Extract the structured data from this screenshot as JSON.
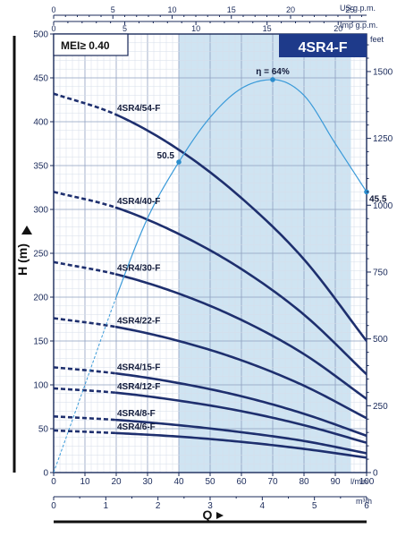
{
  "chart_data": {
    "type": "line",
    "model": "4SR4-F",
    "mei_label": "MEI≥ 0.40",
    "y_axis_label": "H (m)",
    "x_axis_label": "Q",
    "ylim": [
      0,
      500
    ],
    "xlim_lmin": [
      0,
      100
    ],
    "y_ticks_m": [
      0,
      50,
      100,
      150,
      200,
      250,
      300,
      350,
      400,
      450,
      500
    ],
    "x_ticks_lmin": [
      0,
      10,
      20,
      30,
      40,
      50,
      60,
      70,
      80,
      90,
      100
    ],
    "x_unit_lmin": "l/min",
    "x_ticks_m3h": [
      0,
      1,
      2,
      3,
      4,
      5,
      6
    ],
    "x_unit_m3h": "m³/h",
    "top_ticks_usgpm": [
      0,
      5,
      10,
      15,
      20,
      25
    ],
    "top_unit_usgpm": "US g.p.m.",
    "top_unit_impgpm": "Imp g.p.m.",
    "right_ticks_feet": [
      0,
      250,
      500,
      750,
      1000,
      1250,
      1500
    ],
    "right_unit": "feet",
    "operating_range_lmin": [
      40,
      95
    ],
    "grid": true,
    "series": [
      {
        "name": "4SR4/54-F",
        "x": [
          0,
          20,
          40,
          60,
          80,
          100
        ],
        "y": [
          432,
          408,
          368,
          313,
          243,
          150
        ]
      },
      {
        "name": "4SR4/40-F",
        "x": [
          0,
          20,
          40,
          60,
          80,
          100
        ],
        "y": [
          320,
          302,
          272,
          232,
          180,
          112
        ]
      },
      {
        "name": "4SR4/30-F",
        "x": [
          0,
          20,
          40,
          60,
          80,
          100
        ],
        "y": [
          240,
          226,
          204,
          174,
          135,
          84
        ]
      },
      {
        "name": "4SR4/22-F",
        "x": [
          0,
          20,
          40,
          60,
          80,
          100
        ],
        "y": [
          176,
          166,
          150,
          128,
          99,
          62
        ]
      },
      {
        "name": "4SR4/15-F",
        "x": [
          0,
          20,
          40,
          60,
          80,
          100
        ],
        "y": [
          120,
          113,
          102,
          87,
          67,
          42
        ]
      },
      {
        "name": "4SR4/12-F",
        "x": [
          0,
          20,
          40,
          60,
          80,
          100
        ],
        "y": [
          96,
          91,
          82,
          70,
          54,
          34
        ]
      },
      {
        "name": "4SR4/8-F",
        "x": [
          0,
          20,
          40,
          60,
          80,
          100
        ],
        "y": [
          64,
          60,
          54,
          46,
          36,
          22
        ]
      },
      {
        "name": "4SR4/6-F",
        "x": [
          0,
          20,
          40,
          60,
          80,
          100
        ],
        "y": [
          48,
          45,
          41,
          35,
          27,
          17
        ]
      }
    ],
    "efficiency": {
      "label": "η = 64%",
      "x": [
        0,
        10,
        20,
        30,
        40,
        50,
        60,
        70,
        80,
        90,
        100
      ],
      "y": [
        0,
        100,
        200,
        290,
        354,
        405,
        438,
        448,
        430,
        375,
        320
      ],
      "points": [
        {
          "x": 40,
          "y": 354,
          "label": "50.5"
        },
        {
          "x": 70,
          "y": 448,
          "label": ""
        },
        {
          "x": 100,
          "y": 320,
          "label": "45.5"
        }
      ]
    }
  }
}
